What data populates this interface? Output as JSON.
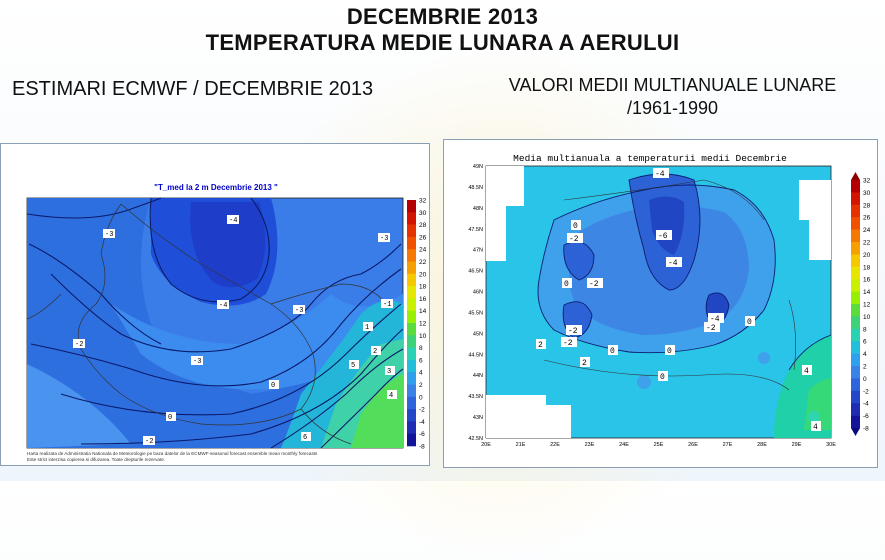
{
  "header": {
    "title_line1": "DECEMBRIE 2013",
    "title_line2": "TEMPERATURA MEDIE LUNARA A AERULUI"
  },
  "left_panel": {
    "heading": "ESTIMARI ECMWF / DECEMBRIE 2013",
    "map_title": "\"T_med la 2 m Decembrie 2013 \"",
    "footer_line1": "Harta realizata de Administratia Nationala de Meteorologie pe baza datelor de la ECMWF-seasonal forecast ensemble mean monthly forecasts",
    "footer_line2": "Este strict interzisa copierea si difuzarea. Toate drepturile rezervate.",
    "colorbar_ticks": [
      "32",
      "30",
      "28",
      "26",
      "24",
      "22",
      "20",
      "18",
      "16",
      "14",
      "12",
      "10",
      "8",
      "6",
      "4",
      "2",
      "0",
      "-2",
      "-4",
      "-6",
      "-8"
    ],
    "contour_labels": [
      "-4",
      "-4",
      "-3",
      "-3",
      "-3",
      "-3",
      "-2",
      "-2",
      "-1",
      "0",
      "0",
      "1",
      "2",
      "3",
      "4",
      "5",
      "6"
    ]
  },
  "right_panel": {
    "heading_line1": "VALORI MEDII MULTIANUALE LUNARE",
    "heading_line2": "/1961-1990",
    "map_title": "Media multianuala a temperaturii medii Decembrie",
    "lat_ticks": [
      "49N",
      "48.5N",
      "48N",
      "47.5N",
      "47N",
      "46.5N",
      "46N",
      "45.5N",
      "45N",
      "44.5N",
      "44N",
      "43.5N",
      "43N",
      "42.5N"
    ],
    "lon_ticks": [
      "20E",
      "21E",
      "22E",
      "23E",
      "24E",
      "25E",
      "26E",
      "27E",
      "28E",
      "29E",
      "30E"
    ],
    "colorbar_ticks": [
      "32",
      "30",
      "28",
      "26",
      "24",
      "22",
      "20",
      "18",
      "16",
      "14",
      "12",
      "10",
      "8",
      "6",
      "4",
      "2",
      "0",
      "-2",
      "-4",
      "-6",
      "-8"
    ],
    "contour_labels": [
      "-4",
      "0",
      "-2",
      "-6",
      "-4",
      "-2",
      "-4",
      "-2",
      "0",
      "-2",
      "-2",
      "0",
      "2",
      "0",
      "0",
      "0",
      "2",
      "4",
      "4"
    ]
  }
}
